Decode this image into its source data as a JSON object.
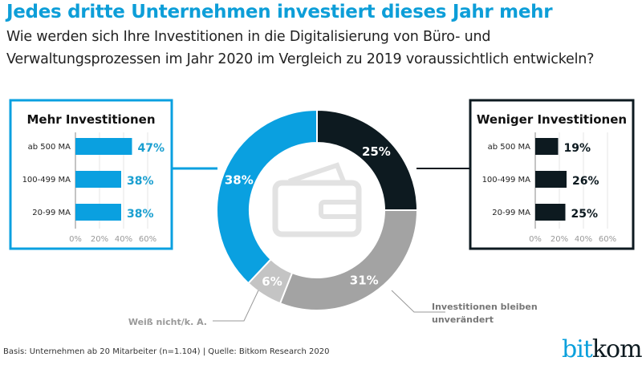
{
  "title": "Jedes dritte Unternehmen investiert dieses Jahr mehr",
  "subtitle_lines": [
    "Wie werden sich Ihre Investitionen in die Digitalisierung von Büro- und",
    "Verwaltungsprozessen im Jahr 2020 im Vergleich zu 2019 voraussichtlich entwickeln?"
  ],
  "footer": "Basis: Unternehmen ab 20 Mitarbeiter (n=1.104) | Quelle: Bitkom Research 2020",
  "logo": {
    "part1": "bit",
    "part2": "kom"
  },
  "colors": {
    "blue": "#0aa0e0",
    "black": "#0d1a20",
    "gray": "#a3a3a3",
    "lightgray": "#c4c4c4",
    "label_blue": "#1a9fd0"
  },
  "chart_data": [
    {
      "type": "pie",
      "donut": true,
      "categories": [
        "Weniger Investitionen",
        "Investitionen bleiben unverändert",
        "Weiß nicht/k. A.",
        "Mehr Investitionen"
      ],
      "values": [
        25,
        31,
        6,
        38
      ],
      "labels": [
        "25%",
        "31%",
        "6%",
        "38%"
      ],
      "annotations": [
        "Weiß nicht/k. A.",
        "Investitionen bleiben unverändert"
      ],
      "center_icon": "wallet-icon"
    },
    {
      "type": "bar",
      "orientation": "horizontal",
      "title": "Mehr Investitionen",
      "categories": [
        "ab 500 MA",
        "100-499 MA",
        "20-99 MA"
      ],
      "values": [
        47,
        38,
        38
      ],
      "labels": [
        "47%",
        "38%",
        "38%"
      ],
      "xlim": [
        0,
        60
      ],
      "ticks": [
        "0%",
        "20%",
        "40%",
        "60%"
      ],
      "grid": true
    },
    {
      "type": "bar",
      "orientation": "horizontal",
      "title": "Weniger Investitionen",
      "categories": [
        "ab 500 MA",
        "100-499 MA",
        "20-99 MA"
      ],
      "values": [
        19,
        26,
        25
      ],
      "labels": [
        "19%",
        "26%",
        "25%"
      ],
      "xlim": [
        0,
        60
      ],
      "ticks": [
        "0%",
        "20%",
        "40%",
        "60%"
      ],
      "grid": true
    }
  ]
}
